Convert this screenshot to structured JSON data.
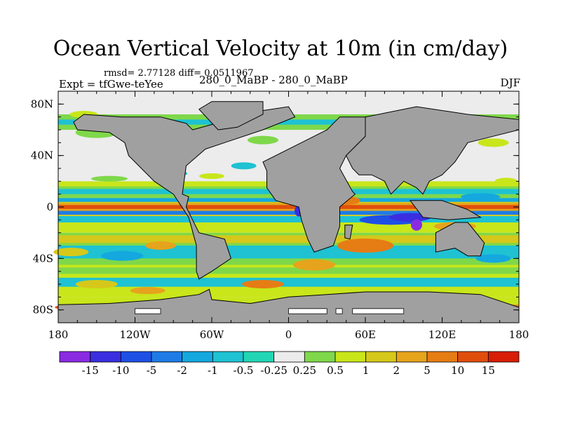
{
  "chart_data": {
    "type": "heatmap",
    "title": "Ocean Vertical Velocity at 10m (in cm/day)",
    "stats": "rmsd= 2.77128  diff= 0.0511967",
    "left_label": "Expt = tfGwe-teYee",
    "center_label": "280_0_MaBP - 280_0_MaBP",
    "right_label": "DJF",
    "x_ticks": [
      {
        "value": -180,
        "label": "180"
      },
      {
        "value": -120,
        "label": "120W"
      },
      {
        "value": -60,
        "label": "60W"
      },
      {
        "value": 0,
        "label": "0"
      },
      {
        "value": 60,
        "label": "60E"
      },
      {
        "value": 120,
        "label": "120E"
      },
      {
        "value": 180,
        "label": "180"
      }
    ],
    "y_ticks": [
      {
        "value": 80,
        "label": "80N"
      },
      {
        "value": 40,
        "label": "40N"
      },
      {
        "value": 0,
        "label": "0"
      },
      {
        "value": -40,
        "label": "40S"
      },
      {
        "value": -80,
        "label": "80S"
      }
    ],
    "xlim": [
      -180,
      180
    ],
    "ylim": [
      -90,
      90
    ],
    "colorbar": {
      "levels": [
        "-15",
        "-10",
        "-5",
        "-2",
        "-1",
        "-0.5",
        "-0.25",
        "0.25",
        "0.5",
        "1",
        "2",
        "5",
        "10",
        "15"
      ],
      "colors": [
        "#8a2be2",
        "#3a2ee0",
        "#1e50e6",
        "#1f7ce6",
        "#14a8df",
        "#1ec2d2",
        "#22d6b4",
        "#ececec",
        "#7fd84a",
        "#c8e61a",
        "#d6c81a",
        "#e6a31c",
        "#e67c14",
        "#e04e0c",
        "#d81e06"
      ]
    },
    "colors": {
      "land": "#a0a0a0",
      "neutral": "#ececec",
      "frame": "#000000"
    }
  }
}
